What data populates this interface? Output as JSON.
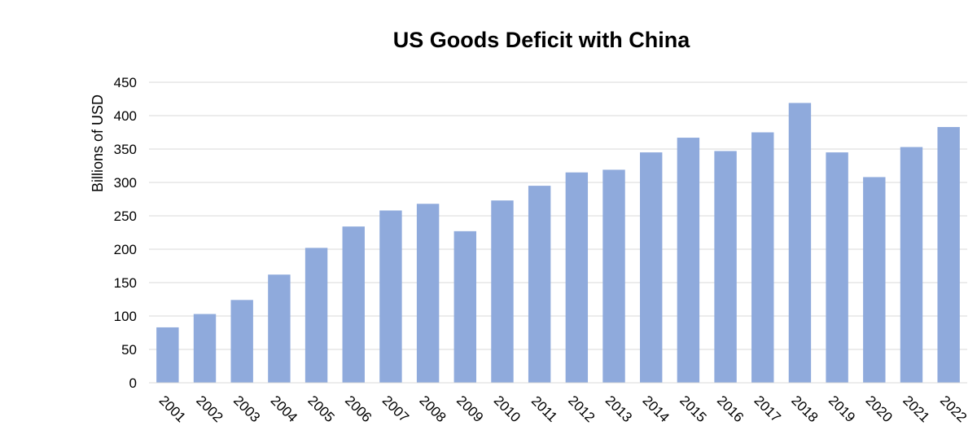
{
  "chart_data": {
    "type": "bar",
    "title": "US Goods Deficit with China",
    "xlabel": "",
    "ylabel": "Billions of USD",
    "ylim": [
      0,
      450
    ],
    "yticks": [
      0,
      50,
      100,
      150,
      200,
      250,
      300,
      350,
      400,
      450
    ],
    "grid": true,
    "legend": "none",
    "bar_color": "#8faadc",
    "categories": [
      "2001",
      "2002",
      "2003",
      "2004",
      "2005",
      "2006",
      "2007",
      "2008",
      "2009",
      "2010",
      "2011",
      "2012",
      "2013",
      "2014",
      "2015",
      "2016",
      "2017",
      "2018",
      "2019",
      "2020",
      "2021",
      "2022"
    ],
    "values": [
      83,
      103,
      124,
      162,
      202,
      234,
      258,
      268,
      227,
      273,
      295,
      315,
      319,
      345,
      367,
      347,
      375,
      419,
      345,
      308,
      353,
      383
    ]
  }
}
